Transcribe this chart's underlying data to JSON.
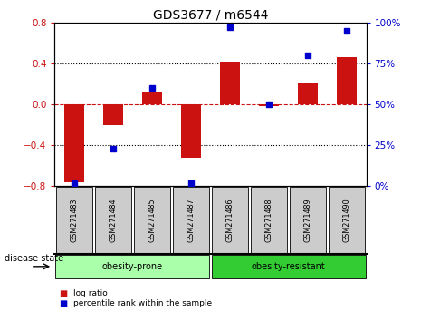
{
  "title": "GDS3677 / m6544",
  "samples": [
    "GSM271483",
    "GSM271484",
    "GSM271485",
    "GSM271487",
    "GSM271486",
    "GSM271488",
    "GSM271489",
    "GSM271490"
  ],
  "log_ratio": [
    -0.76,
    -0.2,
    0.12,
    -0.52,
    0.42,
    -0.02,
    0.2,
    0.46
  ],
  "percentile_rank": [
    2,
    23,
    60,
    2,
    97,
    50,
    80,
    95
  ],
  "groups": [
    {
      "label": "obesity-prone",
      "start": 0,
      "end": 4,
      "color": "#aaffaa"
    },
    {
      "label": "obesity-resistant",
      "start": 4,
      "end": 8,
      "color": "#33cc33"
    }
  ],
  "bar_color": "#cc1111",
  "dot_color": "#0000cc",
  "ylim_left": [
    -0.8,
    0.8
  ],
  "ylim_right": [
    0,
    100
  ],
  "yticks_left": [
    -0.8,
    -0.4,
    0,
    0.4,
    0.8
  ],
  "yticks_right": [
    0,
    25,
    50,
    75,
    100
  ],
  "zero_line_color": "#cc1111",
  "grid_color": "black",
  "background_color": "#ffffff",
  "plot_bg_color": "#ffffff",
  "disease_state_label": "disease state",
  "legend_log_ratio": "log ratio",
  "legend_percentile": "percentile rank within the sample",
  "bar_width": 0.5,
  "dot_size": 5
}
